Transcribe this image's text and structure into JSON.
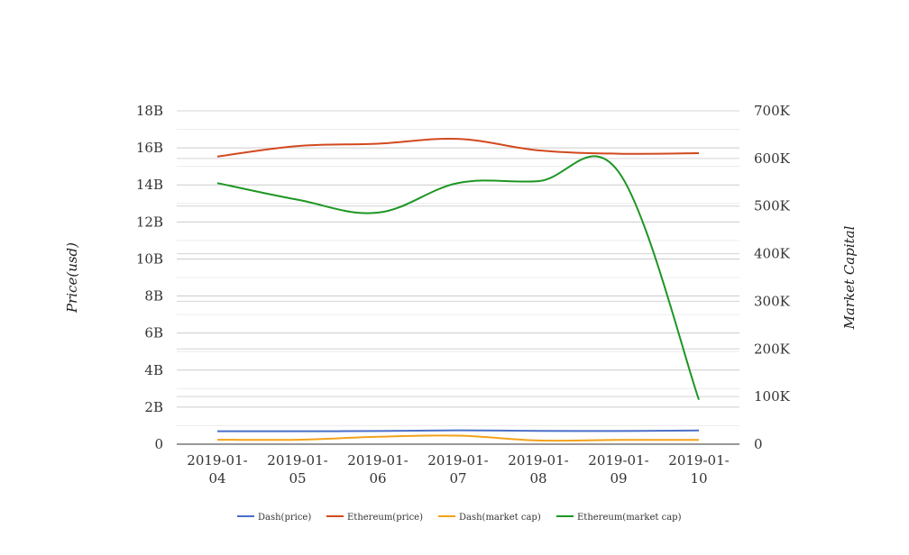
{
  "chart_data": {
    "type": "line",
    "categories": [
      "2019-01-04",
      "2019-01-05",
      "2019-01-06",
      "2019-01-07",
      "2019-01-08",
      "2019-01-09",
      "2019-01-10"
    ],
    "category_lines": [
      [
        "2019-01-",
        "04"
      ],
      [
        "2019-01-",
        "05"
      ],
      [
        "2019-01-",
        "06"
      ],
      [
        "2019-01-",
        "07"
      ],
      [
        "2019-01-",
        "08"
      ],
      [
        "2019-01-",
        "09"
      ],
      [
        "2019-01-",
        "10"
      ]
    ],
    "y_left": {
      "label": "Price(usd)",
      "ylim": [
        0,
        18000000000
      ],
      "ticks": [
        "0",
        "2B",
        "4B",
        "6B",
        "8B",
        "10B",
        "12B",
        "14B",
        "16B",
        "18B"
      ]
    },
    "y_right": {
      "label": "Market Capital",
      "ylim": [
        0,
        700000
      ],
      "ticks": [
        "0",
        "100K",
        "200K",
        "300K",
        "400K",
        "500K",
        "600K",
        "700K"
      ]
    },
    "grid": true,
    "legend_position": "bottom",
    "series": [
      {
        "name": "Dash(price)",
        "axis": "left",
        "color": "#4a6fc9",
        "values": [
          700000000,
          700000000,
          710000000,
          750000000,
          720000000,
          710000000,
          740000000
        ]
      },
      {
        "name": "Ethereum(price)",
        "axis": "right",
        "color": "#d2491e",
        "values": [
          604000,
          626000,
          631000,
          641000,
          617000,
          610000,
          611000
        ]
      },
      {
        "name": "Dash(market cap)",
        "axis": "left",
        "color": "#f2a21a",
        "values": [
          240000000,
          240000000,
          400000000,
          460000000,
          200000000,
          230000000,
          230000000
        ]
      },
      {
        "name": "Ethereum(market cap)",
        "axis": "left",
        "color": "#1d9623",
        "values": [
          14100000000,
          13200000000,
          12500000000,
          14100000000,
          14200000000,
          14700000000,
          2400000000
        ]
      }
    ]
  }
}
